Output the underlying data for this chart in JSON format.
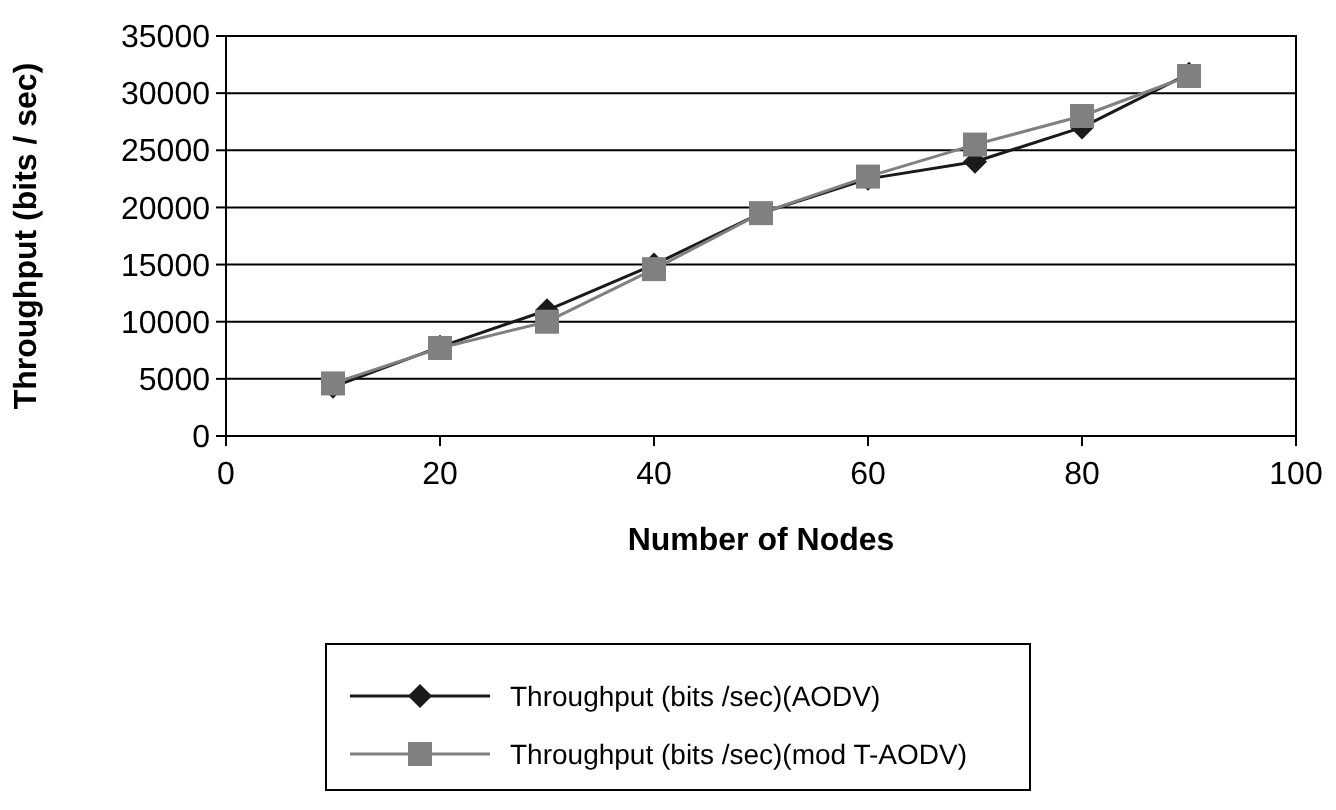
{
  "chart_data": {
    "type": "line",
    "xlabel": "Number of Nodes",
    "ylabel": "Throughput (bits / sec)",
    "x": [
      10,
      20,
      30,
      40,
      50,
      60,
      70,
      80,
      90
    ],
    "series": [
      {
        "name": "Throughput (bits /sec)(AODV)",
        "color": "#1a1a1a",
        "marker": "diamond",
        "values": [
          4300,
          7800,
          11000,
          15000,
          19500,
          22500,
          24000,
          27000,
          31700
        ]
      },
      {
        "name": "Throughput (bits /sec)(mod T-AODV)",
        "color": "#808080",
        "marker": "square",
        "values": [
          4600,
          7700,
          10000,
          14600,
          19500,
          22700,
          25500,
          28000,
          31500
        ]
      }
    ],
    "xlim": [
      0,
      100
    ],
    "xticks": [
      0,
      20,
      40,
      60,
      80,
      100
    ],
    "ylim": [
      0,
      35000
    ],
    "yticks": [
      0,
      5000,
      10000,
      15000,
      20000,
      25000,
      30000,
      35000
    ],
    "grid": "y",
    "legend": "bottom"
  }
}
